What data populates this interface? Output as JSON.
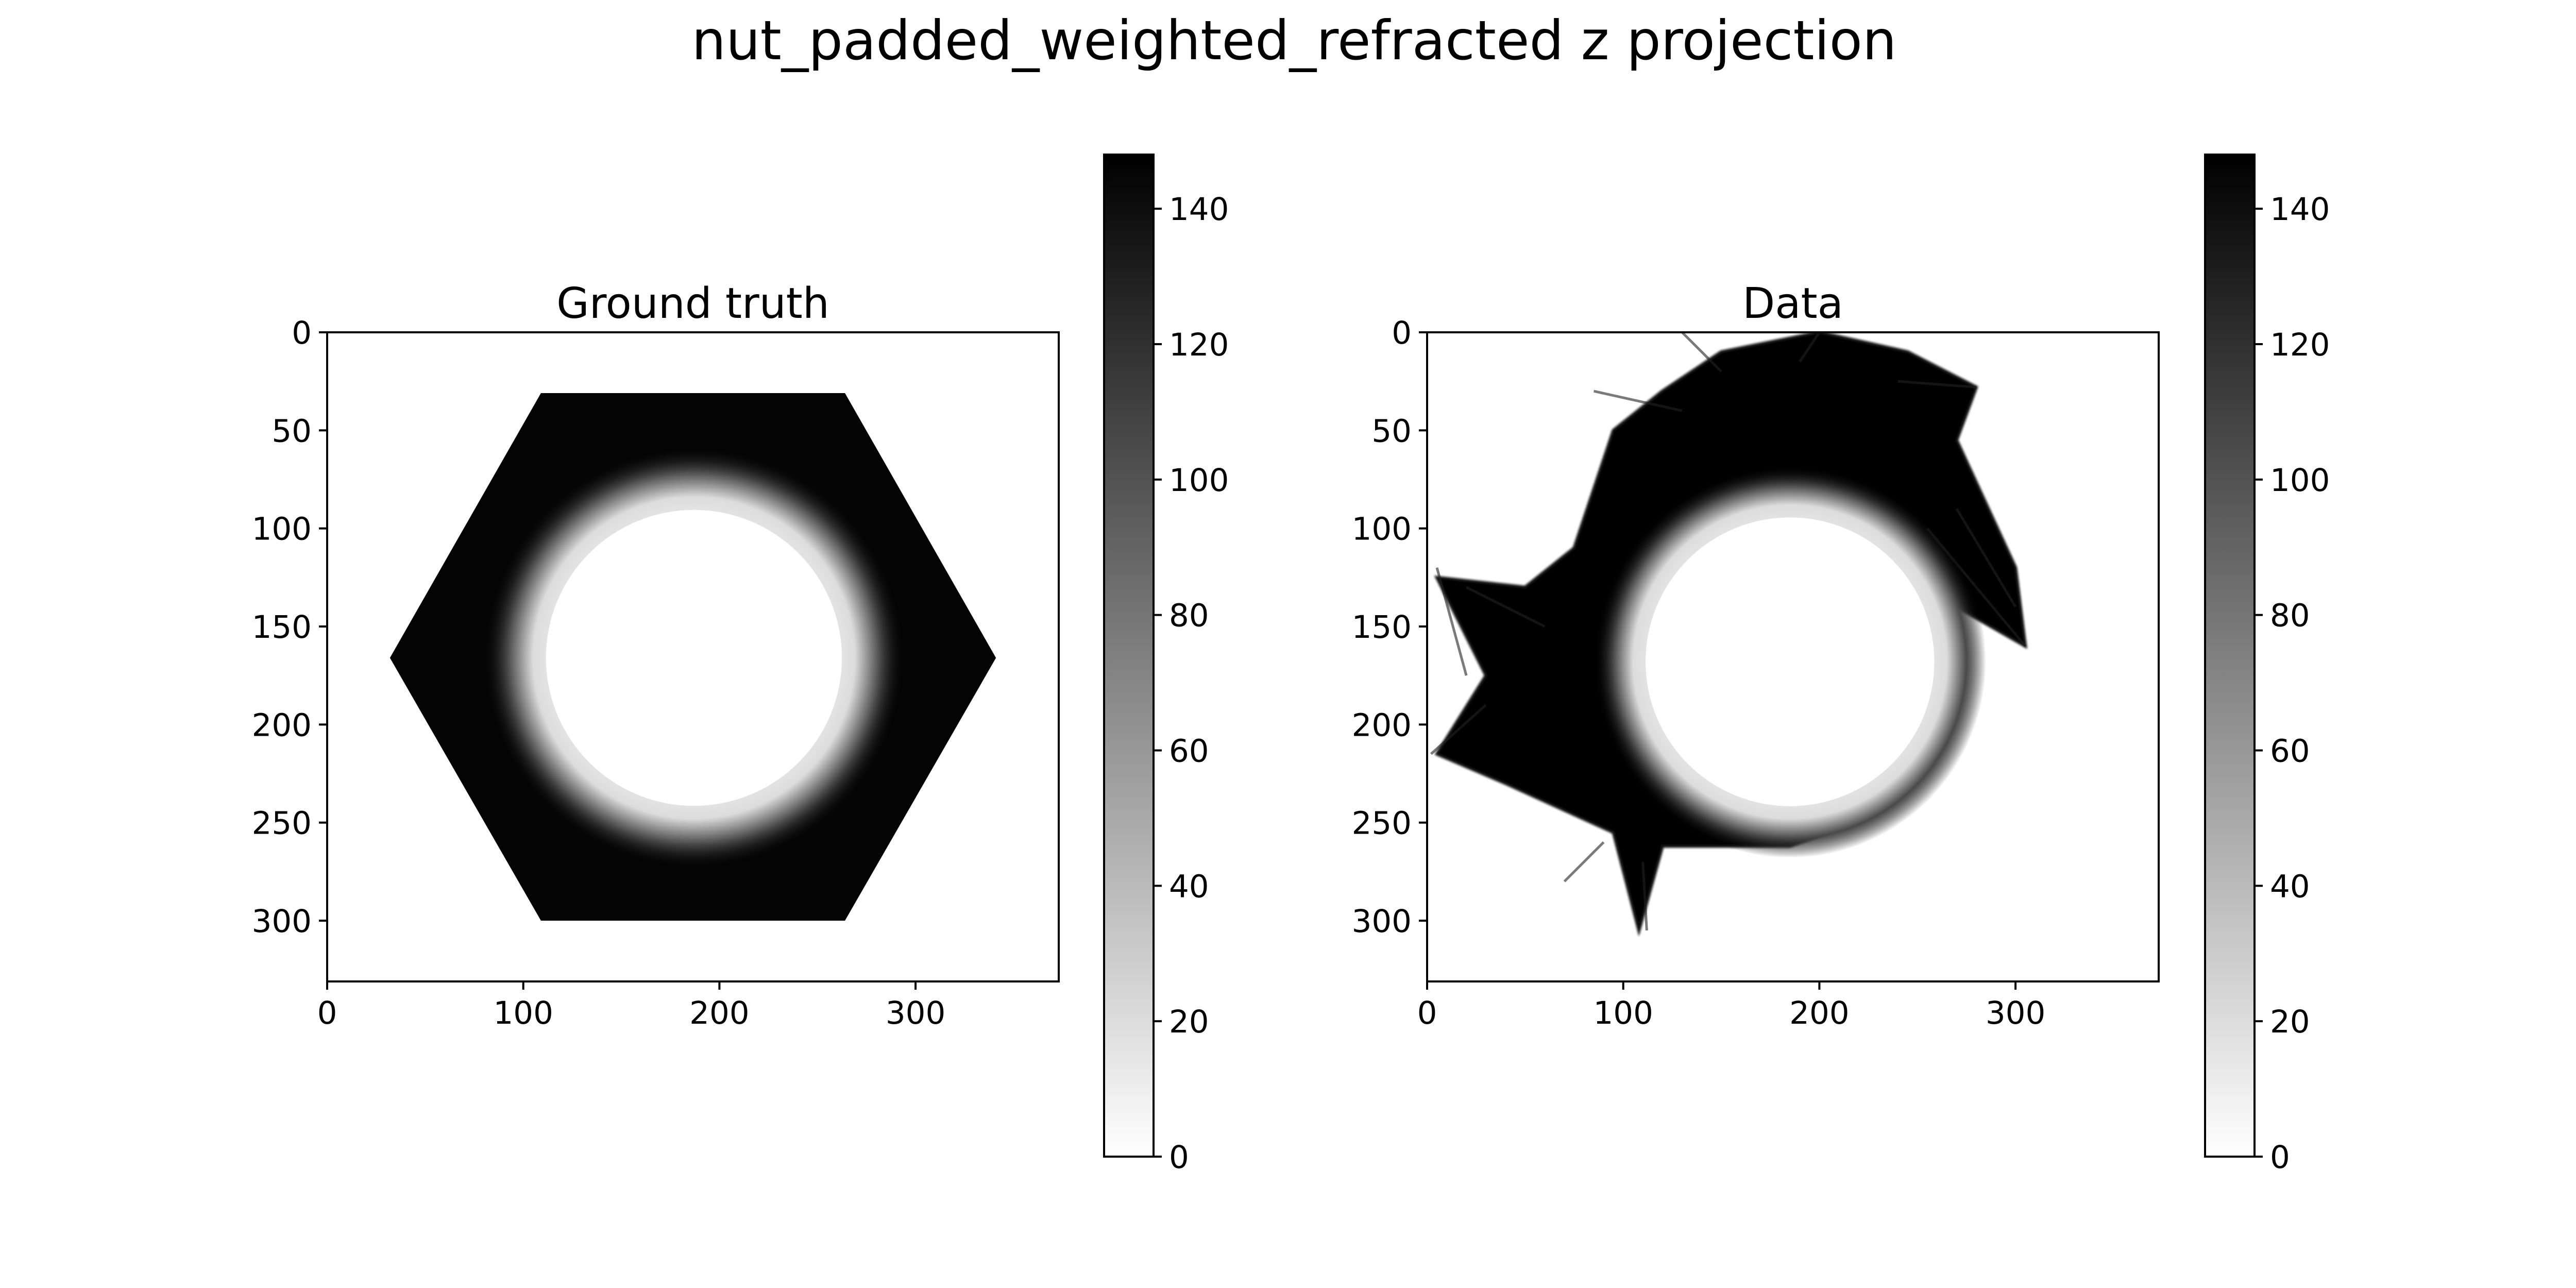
{
  "chart_data": {
    "title": "nut_padded_weighted_refracted z projection",
    "colormap": [
      "#ffffff",
      "#000000"
    ],
    "panels": [
      {
        "type": "heatmap",
        "title": "Ground truth",
        "xlim": [
          0,
          373
        ],
        "ylim": [
          331,
          0
        ],
        "xticks": [
          0,
          100,
          200,
          300
        ],
        "yticks": [
          0,
          50,
          100,
          150,
          200,
          250,
          300
        ],
        "content": "hexagon",
        "hexagon_vertices": [
          [
            109,
            31
          ],
          [
            264,
            31
          ],
          [
            341,
            166
          ],
          [
            264,
            300
          ],
          [
            109,
            300
          ],
          [
            32,
            166
          ]
        ],
        "hole": {
          "cx": 187,
          "cy": 166,
          "r_inner": 82,
          "r_outer": 108
        },
        "outer_value": 148,
        "colorbar": {
          "vmin": 0,
          "vmax": 148,
          "ticks": [
            0,
            20,
            40,
            60,
            80,
            100,
            120,
            140
          ]
        }
      },
      {
        "type": "heatmap",
        "title": "Data",
        "xlim": [
          0,
          373
        ],
        "ylim": [
          331,
          0
        ],
        "xticks": [
          0,
          100,
          200,
          300
        ],
        "yticks": [
          0,
          50,
          100,
          150,
          200,
          250,
          300
        ],
        "content": "reconstruction",
        "outline": [
          [
            120,
            30
          ],
          [
            150,
            10
          ],
          [
            200,
            0
          ],
          [
            245,
            10
          ],
          [
            280,
            28
          ],
          [
            270,
            55
          ],
          [
            300,
            120
          ],
          [
            305,
            160
          ],
          [
            270,
            140
          ],
          [
            240,
            150
          ],
          [
            230,
            130
          ],
          [
            200,
            100
          ],
          [
            165,
            105
          ],
          [
            140,
            140
          ],
          [
            135,
            180
          ],
          [
            155,
            230
          ],
          [
            205,
            255
          ],
          [
            185,
            262
          ],
          [
            120,
            262
          ],
          [
            108,
            305
          ],
          [
            95,
            255
          ],
          [
            40,
            230
          ],
          [
            5,
            215
          ],
          [
            30,
            175
          ],
          [
            5,
            125
          ],
          [
            50,
            130
          ],
          [
            75,
            110
          ],
          [
            95,
            50
          ]
        ],
        "hole": {
          "cx": 185,
          "cy": 168,
          "r_inner": 80,
          "r_outer": 100
        },
        "outer_value": 148,
        "colorbar": {
          "vmin": 0,
          "vmax": 148,
          "ticks": [
            0,
            20,
            40,
            60,
            80,
            100,
            120,
            140
          ]
        }
      }
    ]
  }
}
